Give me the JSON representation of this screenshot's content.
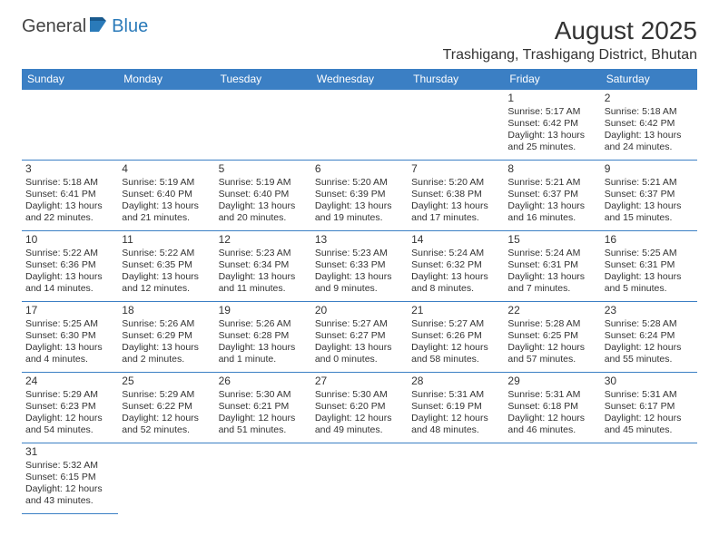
{
  "logo": {
    "general": "General",
    "blue": "Blue"
  },
  "title": "August 2025",
  "location": "Trashigang, Trashigang District, Bhutan",
  "colors": {
    "header_bg": "#3b7fc4",
    "header_text": "#ffffff",
    "border": "#3b7fc4",
    "text": "#333333",
    "logo_blue": "#2a7ab9"
  },
  "dayHeaders": [
    "Sunday",
    "Monday",
    "Tuesday",
    "Wednesday",
    "Thursday",
    "Friday",
    "Saturday"
  ],
  "weeks": [
    [
      null,
      null,
      null,
      null,
      null,
      {
        "n": "1",
        "sr": "5:17 AM",
        "ss": "6:42 PM",
        "dl": "13 hours and 25 minutes."
      },
      {
        "n": "2",
        "sr": "5:18 AM",
        "ss": "6:42 PM",
        "dl": "13 hours and 24 minutes."
      }
    ],
    [
      {
        "n": "3",
        "sr": "5:18 AM",
        "ss": "6:41 PM",
        "dl": "13 hours and 22 minutes."
      },
      {
        "n": "4",
        "sr": "5:19 AM",
        "ss": "6:40 PM",
        "dl": "13 hours and 21 minutes."
      },
      {
        "n": "5",
        "sr": "5:19 AM",
        "ss": "6:40 PM",
        "dl": "13 hours and 20 minutes."
      },
      {
        "n": "6",
        "sr": "5:20 AM",
        "ss": "6:39 PM",
        "dl": "13 hours and 19 minutes."
      },
      {
        "n": "7",
        "sr": "5:20 AM",
        "ss": "6:38 PM",
        "dl": "13 hours and 17 minutes."
      },
      {
        "n": "8",
        "sr": "5:21 AM",
        "ss": "6:37 PM",
        "dl": "13 hours and 16 minutes."
      },
      {
        "n": "9",
        "sr": "5:21 AM",
        "ss": "6:37 PM",
        "dl": "13 hours and 15 minutes."
      }
    ],
    [
      {
        "n": "10",
        "sr": "5:22 AM",
        "ss": "6:36 PM",
        "dl": "13 hours and 14 minutes."
      },
      {
        "n": "11",
        "sr": "5:22 AM",
        "ss": "6:35 PM",
        "dl": "13 hours and 12 minutes."
      },
      {
        "n": "12",
        "sr": "5:23 AM",
        "ss": "6:34 PM",
        "dl": "13 hours and 11 minutes."
      },
      {
        "n": "13",
        "sr": "5:23 AM",
        "ss": "6:33 PM",
        "dl": "13 hours and 9 minutes."
      },
      {
        "n": "14",
        "sr": "5:24 AM",
        "ss": "6:32 PM",
        "dl": "13 hours and 8 minutes."
      },
      {
        "n": "15",
        "sr": "5:24 AM",
        "ss": "6:31 PM",
        "dl": "13 hours and 7 minutes."
      },
      {
        "n": "16",
        "sr": "5:25 AM",
        "ss": "6:31 PM",
        "dl": "13 hours and 5 minutes."
      }
    ],
    [
      {
        "n": "17",
        "sr": "5:25 AM",
        "ss": "6:30 PM",
        "dl": "13 hours and 4 minutes."
      },
      {
        "n": "18",
        "sr": "5:26 AM",
        "ss": "6:29 PM",
        "dl": "13 hours and 2 minutes."
      },
      {
        "n": "19",
        "sr": "5:26 AM",
        "ss": "6:28 PM",
        "dl": "13 hours and 1 minute."
      },
      {
        "n": "20",
        "sr": "5:27 AM",
        "ss": "6:27 PM",
        "dl": "13 hours and 0 minutes."
      },
      {
        "n": "21",
        "sr": "5:27 AM",
        "ss": "6:26 PM",
        "dl": "12 hours and 58 minutes."
      },
      {
        "n": "22",
        "sr": "5:28 AM",
        "ss": "6:25 PM",
        "dl": "12 hours and 57 minutes."
      },
      {
        "n": "23",
        "sr": "5:28 AM",
        "ss": "6:24 PM",
        "dl": "12 hours and 55 minutes."
      }
    ],
    [
      {
        "n": "24",
        "sr": "5:29 AM",
        "ss": "6:23 PM",
        "dl": "12 hours and 54 minutes."
      },
      {
        "n": "25",
        "sr": "5:29 AM",
        "ss": "6:22 PM",
        "dl": "12 hours and 52 minutes."
      },
      {
        "n": "26",
        "sr": "5:30 AM",
        "ss": "6:21 PM",
        "dl": "12 hours and 51 minutes."
      },
      {
        "n": "27",
        "sr": "5:30 AM",
        "ss": "6:20 PM",
        "dl": "12 hours and 49 minutes."
      },
      {
        "n": "28",
        "sr": "5:31 AM",
        "ss": "6:19 PM",
        "dl": "12 hours and 48 minutes."
      },
      {
        "n": "29",
        "sr": "5:31 AM",
        "ss": "6:18 PM",
        "dl": "12 hours and 46 minutes."
      },
      {
        "n": "30",
        "sr": "5:31 AM",
        "ss": "6:17 PM",
        "dl": "12 hours and 45 minutes."
      }
    ],
    [
      {
        "n": "31",
        "sr": "5:32 AM",
        "ss": "6:15 PM",
        "dl": "12 hours and 43 minutes."
      },
      null,
      null,
      null,
      null,
      null,
      null
    ]
  ],
  "labels": {
    "sunrise": "Sunrise:",
    "sunset": "Sunset:",
    "daylight": "Daylight:"
  }
}
